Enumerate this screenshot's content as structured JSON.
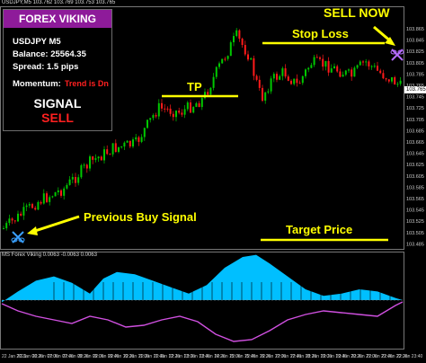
{
  "chart_header": {
    "symbol_info": "USDJPY,M5  103.762 103.769 103.753 103.765"
  },
  "panel": {
    "title": "FOREX VIKING",
    "pair": "USDJPY M5",
    "balance": "Balance: 25564.35",
    "spread": "Spread: 1.5 pips",
    "momentum_label": "Momentum:",
    "momentum_value": "Trend is Dn",
    "signal_label": "SIGNAL",
    "signal_value": "SELL"
  },
  "annotations": {
    "sell_now": "SELL NOW",
    "stop_loss": "Stop Loss",
    "tp": "TP",
    "previous_buy": "Previous Buy Signal",
    "target_price": "Target Price"
  },
  "indicator_header": "MS Forex Viking  0.0063  -0.0063  0.0063",
  "current_price": "103.765",
  "price_axis": [
    "103.865",
    "103.845",
    "103.825",
    "103.805",
    "103.785",
    "103.765",
    "103.745",
    "103.725",
    "103.705",
    "103.685",
    "103.665",
    "103.645",
    "103.625",
    "103.605",
    "103.585",
    "103.565",
    "103.545",
    "103.525",
    "103.505",
    "103.485"
  ],
  "time_axis": [
    "22 Jan 2021",
    "22 Jan 06:20",
    "22 Jan 07:00",
    "22 Jan 07:40",
    "22 Jan 08:20",
    "22 Jan 09:00",
    "22 Jan 09:40",
    "22 Jan 10:20",
    "22 Jan 11:00",
    "22 Jan 11:40",
    "22 Jan 12:20",
    "22 Jan 13:00",
    "22 Jan 13:40",
    "22 Jan 14:20",
    "22 Jan 15:00",
    "22 Jan 15:40",
    "22 Jan 16:20",
    "22 Jan 17:00",
    "22 Jan 17:40",
    "22 Jan 18:20",
    "22 Jan 19:00",
    "22 Jan 19:40",
    "22 Jan 20:20",
    "22 Jan 21:00",
    "22 Jan 21:40",
    "22 Jan 22:20",
    "22 Jan 23:40"
  ],
  "colors": {
    "bull": "#00c800",
    "bear": "#ff1a1a",
    "histogram": "#00bfff",
    "oscillator": "#d050e0",
    "annotation": "#ffff00",
    "panel_title_bg": "#8e1b9a",
    "signal_sell": "#ff2020"
  },
  "icons": [
    "butterfly-sell-icon",
    "butterfly-buy-icon",
    "arrow-icon"
  ]
}
